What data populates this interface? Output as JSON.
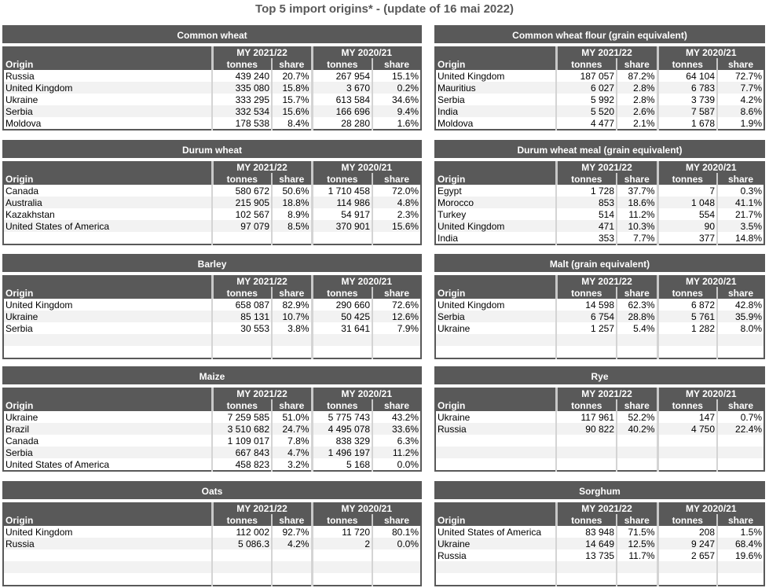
{
  "page_title": "Top 5 import origins* - (update of 16 mai 2022)",
  "headers": {
    "origin": "Origin",
    "period1": "MY 2021/22",
    "period2": "MY 2020/21",
    "tonnes": "tonnes",
    "share": "share"
  },
  "tables": [
    {
      "title": "Common wheat",
      "rows": [
        [
          "Russia",
          "439 240",
          "20.7%",
          "267 954",
          "15.1%"
        ],
        [
          "United Kingdom",
          "335 080",
          "15.8%",
          "3 670",
          "0.2%"
        ],
        [
          "Ukraine",
          "333 295",
          "15.7%",
          "613 584",
          "34.6%"
        ],
        [
          "Serbia",
          "332 534",
          "15.6%",
          "166 696",
          "9.4%"
        ],
        [
          "Moldova",
          "178 538",
          "8.4%",
          "28 280",
          "1.6%"
        ]
      ]
    },
    {
      "title": "Common wheat flour (grain equivalent)",
      "rows": [
        [
          "United Kingdom",
          "187 057",
          "87.2%",
          "64 104",
          "72.7%"
        ],
        [
          "Mauritius",
          "6 027",
          "2.8%",
          "6 783",
          "7.7%"
        ],
        [
          "Serbia",
          "5 992",
          "2.8%",
          "3 739",
          "4.2%"
        ],
        [
          "India",
          "5 520",
          "2.6%",
          "7 587",
          "8.6%"
        ],
        [
          "Moldova",
          "4 477",
          "2.1%",
          "1 678",
          "1.9%"
        ]
      ]
    },
    {
      "title": "Durum wheat",
      "rows": [
        [
          "Canada",
          "580 672",
          "50.6%",
          "1 710 458",
          "72.0%"
        ],
        [
          "Australia",
          "215 905",
          "18.8%",
          "114 986",
          "4.8%"
        ],
        [
          "Kazakhstan",
          "102 567",
          "8.9%",
          "54 917",
          "2.3%"
        ],
        [
          "United States of America",
          "97 079",
          "8.5%",
          "370 901",
          "15.6%"
        ]
      ]
    },
    {
      "title": "Durum wheat meal (grain equivalent)",
      "rows": [
        [
          "Egypt",
          "1 728",
          "37.7%",
          "7",
          "0.3%"
        ],
        [
          "Morocco",
          "853",
          "18.6%",
          "1 048",
          "41.1%"
        ],
        [
          "Turkey",
          "514",
          "11.2%",
          "554",
          "21.7%"
        ],
        [
          "United Kingdom",
          "471",
          "10.3%",
          "90",
          "3.5%"
        ],
        [
          "India",
          "353",
          "7.7%",
          "377",
          "14.8%"
        ]
      ]
    },
    {
      "title": "Barley",
      "rows": [
        [
          "United Kingdom",
          "658 087",
          "82.9%",
          "290 660",
          "72.6%"
        ],
        [
          "Ukraine",
          "85 131",
          "10.7%",
          "50 425",
          "12.6%"
        ],
        [
          "Serbia",
          "30 553",
          "3.8%",
          "31 641",
          "7.9%"
        ]
      ]
    },
    {
      "title": "Malt (grain equivalent)",
      "rows": [
        [
          "United Kingdom",
          "14 598",
          "62.3%",
          "6 872",
          "42.8%"
        ],
        [
          "Serbia",
          "6 754",
          "28.8%",
          "5 761",
          "35.9%"
        ],
        [
          "Ukraine",
          "1 257",
          "5.4%",
          "1 282",
          "8.0%"
        ]
      ]
    },
    {
      "title": "Maize",
      "rows": [
        [
          "Ukraine",
          "7 259 585",
          "51.0%",
          "5 775 743",
          "43.2%"
        ],
        [
          "Brazil",
          "3 510 682",
          "24.7%",
          "4 495 078",
          "33.6%"
        ],
        [
          "Canada",
          "1 109 017",
          "7.8%",
          "838 329",
          "6.3%"
        ],
        [
          "Serbia",
          "667 843",
          "4.7%",
          "1 496 197",
          "11.2%"
        ],
        [
          "United States of America",
          "458 823",
          "3.2%",
          "5 168",
          "0.0%"
        ]
      ]
    },
    {
      "title": "Rye",
      "rows": [
        [
          "Ukraine",
          "117 961",
          "52.2%",
          "147",
          "0.7%"
        ],
        [
          "Russia",
          "90 822",
          "40.2%",
          "4 750",
          "22.4%"
        ]
      ]
    },
    {
      "title": "Oats",
      "rows": [
        [
          "United Kingdom",
          "112 002",
          "92.7%",
          "11 720",
          "80.1%"
        ],
        [
          "Russia",
          "5 086.3",
          "4.2%",
          "2",
          "0.0%"
        ]
      ]
    },
    {
      "title": "Sorghum",
      "rows": [
        [
          "United States of America",
          "83 948",
          "71.5%",
          "208",
          "1.5%"
        ],
        [
          "Ukraine",
          "14 649",
          "12.5%",
          "9 247",
          "68.4%"
        ],
        [
          "Russia",
          "13 735",
          "11.7%",
          "2 657",
          "19.6%"
        ]
      ]
    }
  ]
}
